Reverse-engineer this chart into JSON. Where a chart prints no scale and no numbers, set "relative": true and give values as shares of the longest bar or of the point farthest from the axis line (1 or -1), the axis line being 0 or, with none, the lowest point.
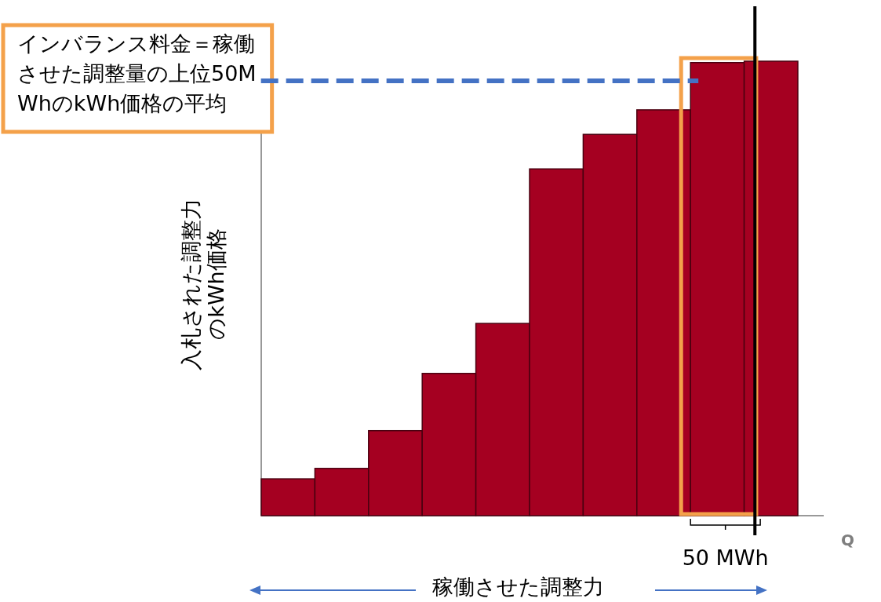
{
  "chart_data": {
    "type": "bar",
    "relative": true,
    "color": "#a50021",
    "categories": [
      null,
      null,
      null,
      null,
      null,
      null,
      null,
      null,
      null,
      null
    ],
    "values": [
      0.081,
      0.104,
      0.187,
      0.313,
      0.423,
      0.763,
      0.839,
      0.893,
      0.997,
      1
    ],
    "xlabel": "稼働させた調整力",
    "ylabel": "入札された調整力のkWh価格",
    "ref_lines": [
      {
        "axis": "y",
        "value": 0.957,
        "label": "インバランス料金＝稼働させた調整量の上位50MWhのkWh価格の平均",
        "color": "#4472c4",
        "line_style": "dashed"
      }
    ],
    "annotations": [
      "Q",
      "50 MWh"
    ]
  }
}
